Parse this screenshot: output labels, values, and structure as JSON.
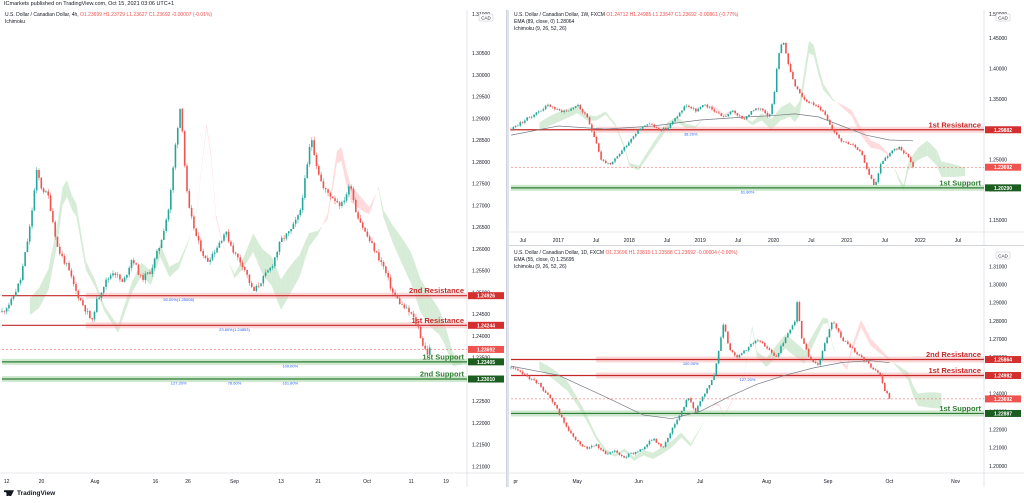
{
  "header": {
    "text": "ICmarkets published on TradingView.com, Oct 15, 2021 03:06 UTC+1"
  },
  "footer": {
    "logo_text": "TradingView"
  },
  "colors": {
    "up": "#26a69a",
    "down": "#ef5350",
    "resistance_line": "#c62828",
    "resistance_zone": "#f8b8b8",
    "support_line": "#2e7d32",
    "support_zone": "#a5d6a7",
    "cloud_bull": "#c8e6c9",
    "cloud_bear": "#ffcdd2",
    "label_bg_red": "#d32f2f",
    "label_bg_green": "#1b5e20",
    "axis_text": "#131722"
  },
  "chart_data": [
    {
      "id": "left",
      "type": "line",
      "legend_title": "U.S. Dollar / Canadian Dollar, 4h,",
      "legend_ohlc": "O1.23699 H1.23729 L1.23627 C1.23692 -0.00007 (-0.01%)",
      "legend_sub": "Ichimoku",
      "currency_tag": "CAD",
      "ylim": [
        1.2085,
        1.314
      ],
      "y_ticks": [
        1.305,
        1.3,
        1.295,
        1.29,
        1.285,
        1.28,
        1.275,
        1.27,
        1.265,
        1.26,
        1.255,
        1.25,
        1.245,
        1.24,
        1.235,
        1.23,
        1.225,
        1.22,
        1.215,
        1.21
      ],
      "top_partial_tick": "1.31000",
      "x_ticks": [
        "12",
        "20",
        "Aug",
        "16",
        "26",
        "Sep",
        "13",
        "21",
        "Oct",
        "11",
        "19"
      ],
      "x_tick_positions": [
        0.01,
        0.085,
        0.2,
        0.33,
        0.4,
        0.5,
        0.6,
        0.68,
        0.785,
        0.88,
        0.955
      ],
      "price_series": [
        [
          0,
          1.2455
        ],
        [
          0.02,
          1.248
        ],
        [
          0.04,
          1.253
        ],
        [
          0.06,
          1.265
        ],
        [
          0.075,
          1.278
        ],
        [
          0.085,
          1.274
        ],
        [
          0.1,
          1.272
        ],
        [
          0.12,
          1.26
        ],
        [
          0.14,
          1.256
        ],
        [
          0.16,
          1.25
        ],
        [
          0.18,
          1.246
        ],
        [
          0.195,
          1.243
        ],
        [
          0.2,
          1.247
        ],
        [
          0.22,
          1.252
        ],
        [
          0.24,
          1.255
        ],
        [
          0.26,
          1.252
        ],
        [
          0.28,
          1.258
        ],
        [
          0.3,
          1.253
        ],
        [
          0.32,
          1.255
        ],
        [
          0.34,
          1.261
        ],
        [
          0.36,
          1.27
        ],
        [
          0.375,
          1.286
        ],
        [
          0.385,
          1.294
        ],
        [
          0.39,
          1.283
        ],
        [
          0.4,
          1.27
        ],
        [
          0.42,
          1.262
        ],
        [
          0.44,
          1.257
        ],
        [
          0.46,
          1.26
        ],
        [
          0.48,
          1.264
        ],
        [
          0.5,
          1.259
        ],
        [
          0.52,
          1.256
        ],
        [
          0.54,
          1.25
        ],
        [
          0.56,
          1.253
        ],
        [
          0.58,
          1.256
        ],
        [
          0.6,
          1.262
        ],
        [
          0.62,
          1.264
        ],
        [
          0.64,
          1.268
        ],
        [
          0.655,
          1.278
        ],
        [
          0.665,
          1.286
        ],
        [
          0.675,
          1.28
        ],
        [
          0.69,
          1.274
        ],
        [
          0.71,
          1.272
        ],
        [
          0.73,
          1.27
        ],
        [
          0.75,
          1.275
        ],
        [
          0.76,
          1.269
        ],
        [
          0.78,
          1.264
        ],
        [
          0.8,
          1.26
        ],
        [
          0.82,
          1.256
        ],
        [
          0.84,
          1.25
        ],
        [
          0.86,
          1.247
        ],
        [
          0.88,
          1.245
        ],
        [
          0.895,
          1.242
        ],
        [
          0.905,
          1.238
        ],
        [
          0.915,
          1.236
        ],
        [
          0.92,
          1.2369
        ]
      ],
      "lines": [
        {
          "kind": "resistance",
          "label": "2nd Resistance",
          "value": 1.24926,
          "tag": "1.24926"
        },
        {
          "kind": "resistance",
          "label": "1st Resistance",
          "value": 1.24244,
          "tag": "1.24244"
        },
        {
          "kind": "support",
          "label": "1st Support",
          "value": 1.23405,
          "tag": "1.23405"
        },
        {
          "kind": "support",
          "label": "2nd Support",
          "value": 1.2301,
          "tag": "1.23010"
        }
      ],
      "price_tag": "1.23692",
      "fib_labels": [
        "50.00%(1.25008)",
        "23.60%(1.24853)",
        "100.00%",
        "127.20%",
        "78.60%",
        "161.80%"
      ]
    },
    {
      "id": "top-right",
      "type": "line",
      "legend_title": "U.S. Dollar / Canadian Dollar, 1W, FXCM",
      "legend_ohlc": "O1.24712 H1.24985 L1.23547 C1.23692 -0.00861 (-0.77%)",
      "legend_sub1": "EMA (89, close, 0)  1.28064",
      "legend_sub2": "Ichimoku (9, 26, 52, 26)",
      "currency_tag": "CAD",
      "ylim": [
        1.13,
        1.49
      ],
      "y_ticks": [
        1.45,
        1.4,
        1.35,
        1.3,
        1.25,
        1.2,
        1.15
      ],
      "top_partial_tick": "1.50000",
      "x_ticks": [
        "Jul",
        "2017",
        "Jul",
        "2018",
        "Jul",
        "2019",
        "Jul",
        "2020",
        "Jul",
        "2021",
        "Jul",
        "2022",
        "Jul"
      ],
      "x_tick_positions": [
        0.025,
        0.1,
        0.18,
        0.25,
        0.33,
        0.4,
        0.48,
        0.555,
        0.635,
        0.71,
        0.79,
        0.865,
        0.945
      ],
      "price_series": [
        [
          0,
          1.3
        ],
        [
          0.02,
          1.31
        ],
        [
          0.04,
          1.32
        ],
        [
          0.06,
          1.33
        ],
        [
          0.08,
          1.34
        ],
        [
          0.1,
          1.33
        ],
        [
          0.12,
          1.33
        ],
        [
          0.14,
          1.34
        ],
        [
          0.16,
          1.32
        ],
        [
          0.18,
          1.28
        ],
        [
          0.19,
          1.25
        ],
        [
          0.21,
          1.24
        ],
        [
          0.23,
          1.26
        ],
        [
          0.25,
          1.28
        ],
        [
          0.27,
          1.3
        ],
        [
          0.29,
          1.31
        ],
        [
          0.31,
          1.3
        ],
        [
          0.33,
          1.3
        ],
        [
          0.35,
          1.32
        ],
        [
          0.37,
          1.34
        ],
        [
          0.39,
          1.33
        ],
        [
          0.41,
          1.34
        ],
        [
          0.43,
          1.33
        ],
        [
          0.45,
          1.32
        ],
        [
          0.47,
          1.33
        ],
        [
          0.49,
          1.315
        ],
        [
          0.51,
          1.33
        ],
        [
          0.53,
          1.335
        ],
        [
          0.545,
          1.32
        ],
        [
          0.555,
          1.35
        ],
        [
          0.565,
          1.42
        ],
        [
          0.575,
          1.45
        ],
        [
          0.585,
          1.41
        ],
        [
          0.6,
          1.37
        ],
        [
          0.62,
          1.35
        ],
        [
          0.64,
          1.34
        ],
        [
          0.66,
          1.33
        ],
        [
          0.68,
          1.3
        ],
        [
          0.7,
          1.28
        ],
        [
          0.72,
          1.275
        ],
        [
          0.74,
          1.26
        ],
        [
          0.76,
          1.22
        ],
        [
          0.77,
          1.205
        ],
        [
          0.78,
          1.24
        ],
        [
          0.8,
          1.26
        ],
        [
          0.82,
          1.27
        ],
        [
          0.84,
          1.255
        ],
        [
          0.85,
          1.237
        ]
      ],
      "ema_series": [
        [
          0,
          1.29
        ],
        [
          0.1,
          1.305
        ],
        [
          0.2,
          1.3
        ],
        [
          0.3,
          1.305
        ],
        [
          0.4,
          1.315
        ],
        [
          0.5,
          1.32
        ],
        [
          0.55,
          1.322
        ],
        [
          0.6,
          1.325
        ],
        [
          0.65,
          1.32
        ],
        [
          0.7,
          1.305
        ],
        [
          0.75,
          1.29
        ],
        [
          0.8,
          1.282
        ],
        [
          0.85,
          1.2806
        ]
      ],
      "lines": [
        {
          "kind": "resistance",
          "label": "1st Resistance",
          "value": 1.29882,
          "tag": "1.29882"
        },
        {
          "kind": "support",
          "label": "1st Support",
          "value": 1.2029,
          "tag": "1.20290"
        }
      ],
      "price_tag": "1.23692",
      "fib_labels": [
        "38.20%",
        "61.80%"
      ]
    },
    {
      "id": "bottom-right",
      "type": "line",
      "legend_title": "U.S. Dollar / Canadian Dollar, 1D, FXCM",
      "legend_ohlc": "O1.23696 H1.23819 L1.23588 C1.23692 -0.00004 (-0.00%)",
      "legend_sub1": "EMA (55, close, 0)  1.25695",
      "legend_sub2": "Ichimoku (9, 26, 52, 26)",
      "currency_tag": "CAD",
      "ylim": [
        1.196,
        1.318
      ],
      "y_ticks": [
        1.31,
        1.3,
        1.29,
        1.28,
        1.27,
        1.26,
        1.25,
        1.24,
        1.23,
        1.22,
        1.21,
        1.2
      ],
      "x_ticks": [
        "pr",
        "May",
        "Jun",
        "Jul",
        "Aug",
        "Sep",
        "Oct",
        "Nov"
      ],
      "x_tick_positions": [
        0.01,
        0.14,
        0.27,
        0.4,
        0.54,
        0.67,
        0.8,
        0.94
      ],
      "price_series": [
        [
          0,
          1.254
        ],
        [
          0.03,
          1.25
        ],
        [
          0.06,
          1.245
        ],
        [
          0.08,
          1.238
        ],
        [
          0.1,
          1.23
        ],
        [
          0.12,
          1.22
        ],
        [
          0.14,
          1.213
        ],
        [
          0.16,
          1.21
        ],
        [
          0.18,
          1.212
        ],
        [
          0.2,
          1.206
        ],
        [
          0.22,
          1.208
        ],
        [
          0.24,
          1.205
        ],
        [
          0.26,
          1.207
        ],
        [
          0.28,
          1.21
        ],
        [
          0.3,
          1.215
        ],
        [
          0.32,
          1.21
        ],
        [
          0.34,
          1.22
        ],
        [
          0.36,
          1.23
        ],
        [
          0.375,
          1.238
        ],
        [
          0.39,
          1.23
        ],
        [
          0.41,
          1.24
        ],
        [
          0.43,
          1.25
        ],
        [
          0.44,
          1.265
        ],
        [
          0.45,
          1.28
        ],
        [
          0.46,
          1.265
        ],
        [
          0.48,
          1.26
        ],
        [
          0.5,
          1.265
        ],
        [
          0.52,
          1.27
        ],
        [
          0.54,
          1.265
        ],
        [
          0.56,
          1.26
        ],
        [
          0.58,
          1.27
        ],
        [
          0.6,
          1.28
        ],
        [
          0.605,
          1.29
        ],
        [
          0.615,
          1.27
        ],
        [
          0.63,
          1.26
        ],
        [
          0.65,
          1.255
        ],
        [
          0.66,
          1.265
        ],
        [
          0.68,
          1.28
        ],
        [
          0.7,
          1.27
        ],
        [
          0.72,
          1.265
        ],
        [
          0.74,
          1.26
        ],
        [
          0.76,
          1.255
        ],
        [
          0.78,
          1.25
        ],
        [
          0.79,
          1.242
        ],
        [
          0.8,
          1.2369
        ]
      ],
      "ema_series": [
        [
          0,
          1.255
        ],
        [
          0.1,
          1.25
        ],
        [
          0.2,
          1.238
        ],
        [
          0.28,
          1.228
        ],
        [
          0.34,
          1.226
        ],
        [
          0.4,
          1.23
        ],
        [
          0.46,
          1.238
        ],
        [
          0.52,
          1.245
        ],
        [
          0.58,
          1.25
        ],
        [
          0.64,
          1.254
        ],
        [
          0.7,
          1.257
        ],
        [
          0.76,
          1.258
        ],
        [
          0.8,
          1.2569
        ]
      ],
      "lines": [
        {
          "kind": "resistance",
          "label": "2nd Resistance",
          "value": 1.25864,
          "tag": "1.25864"
        },
        {
          "kind": "resistance",
          "label": "1st Resistance",
          "value": 1.24982,
          "tag": "1.24982"
        },
        {
          "kind": "support",
          "label": "1st Support",
          "value": 1.22887,
          "tag": "1.22887"
        }
      ],
      "price_tag": "1.23692",
      "fib_labels": [
        "100.00%",
        "127.20%"
      ]
    }
  ]
}
